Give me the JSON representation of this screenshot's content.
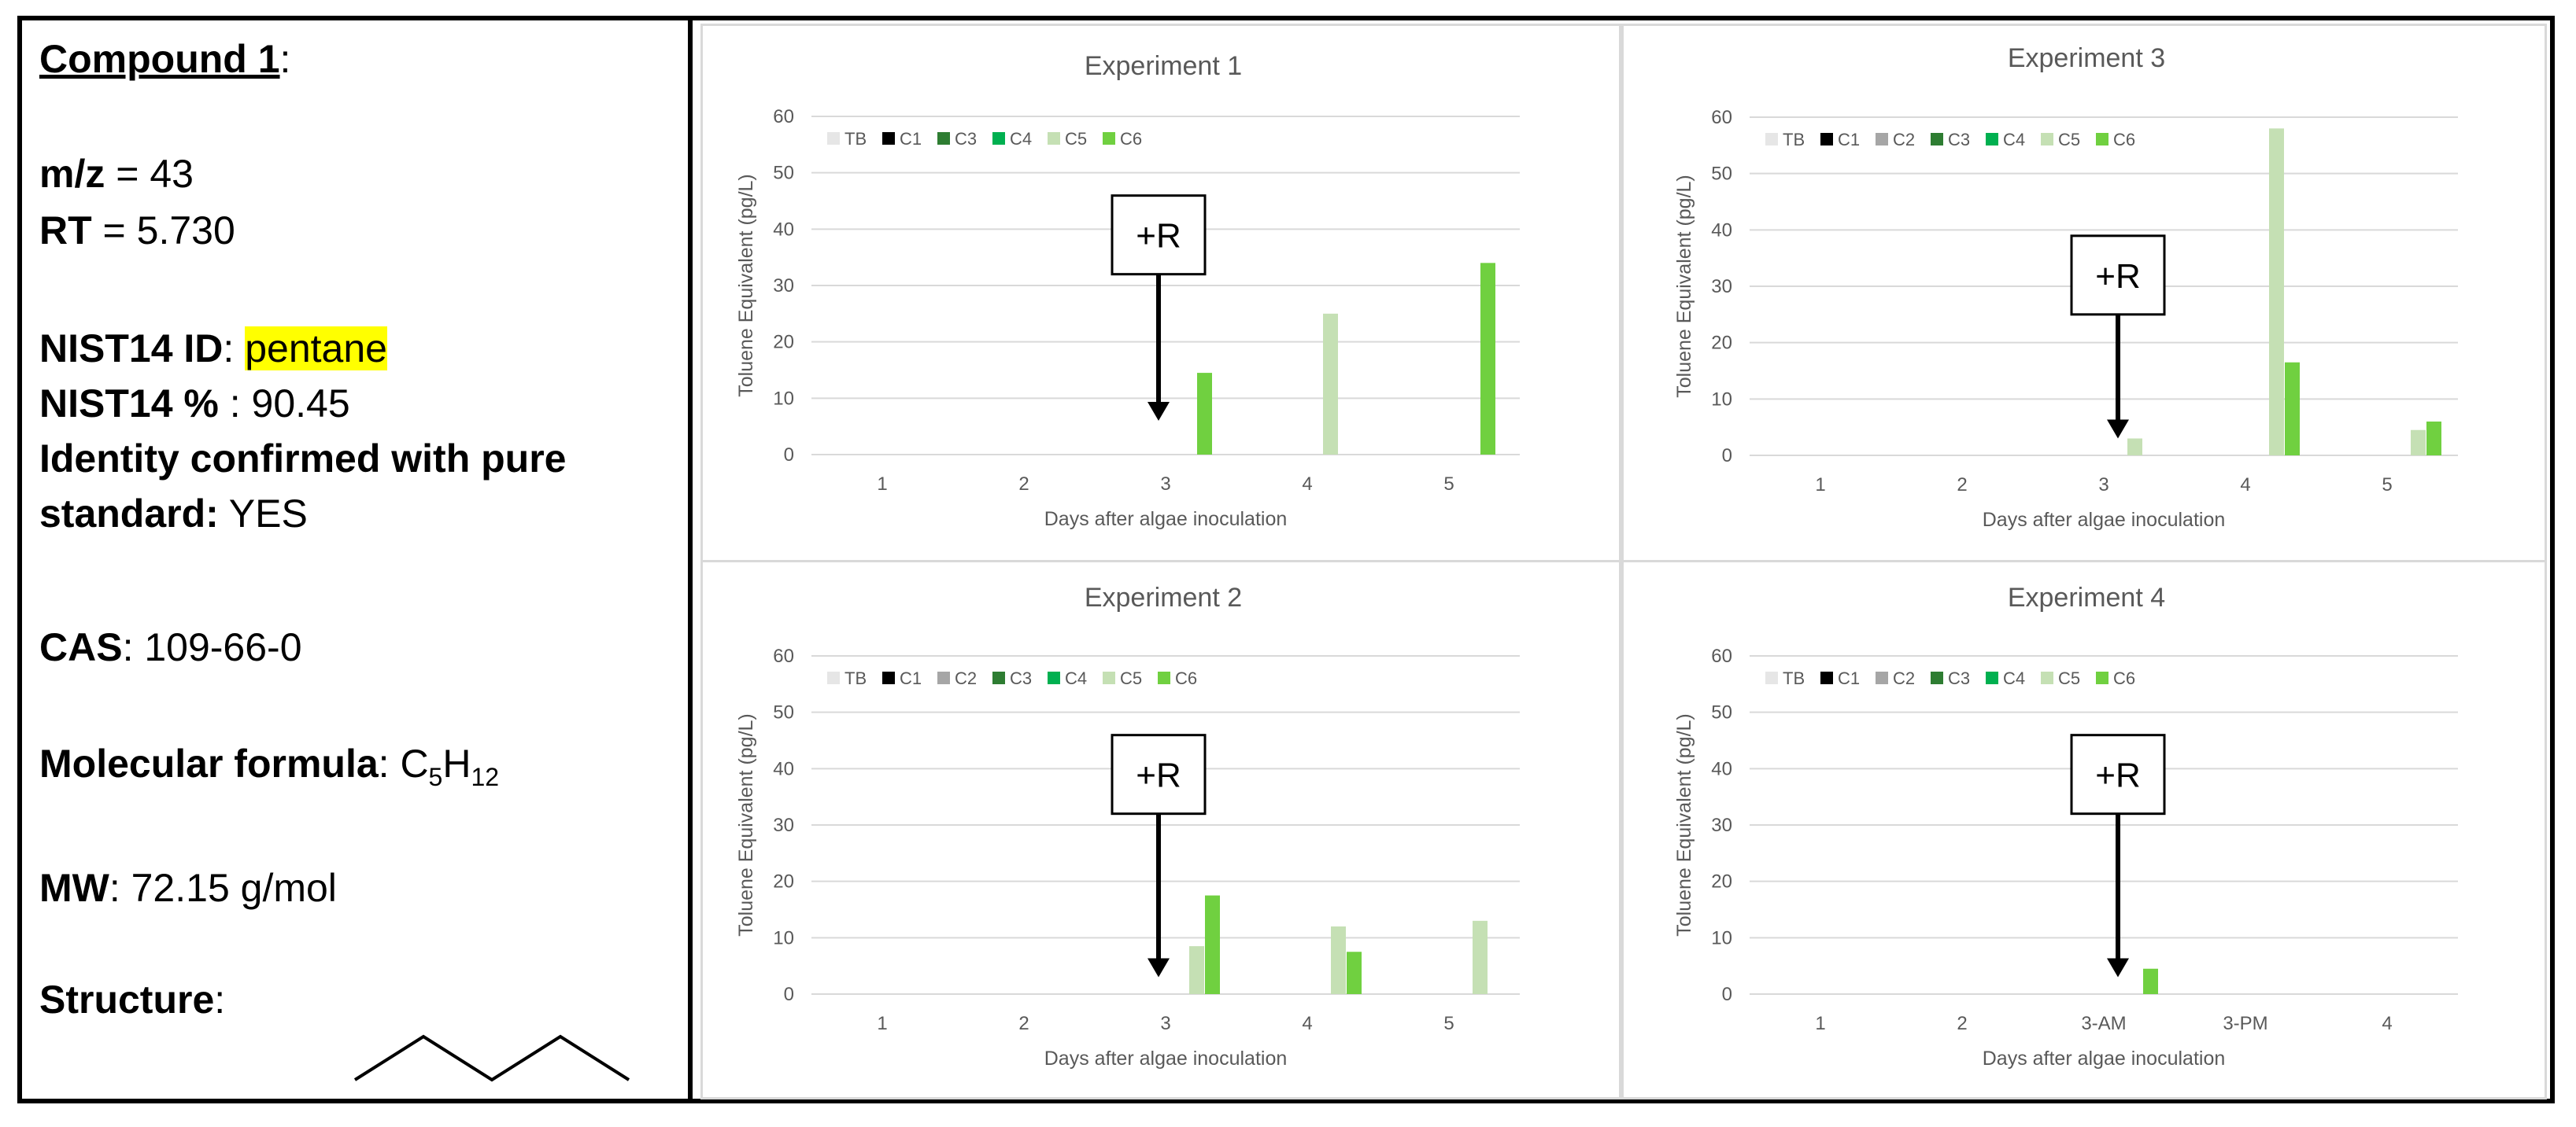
{
  "compound": {
    "title": "Compound 1",
    "title_suffix": ":",
    "mz_label": "m/z",
    "mz_value": " = 43",
    "rt_label": "RT",
    "rt_value": " = 5.730",
    "nist_id_label": "NIST14 ID",
    "nist_id_sep": ": ",
    "nist_id_value": "pentane",
    "nist_pct_label": "NIST14 %",
    "nist_pct_value": " : 90.45",
    "identity_line1": "Identity confirmed with pure",
    "identity_line2_label": "standard:",
    "identity_line2_value": " YES",
    "cas_label": "CAS",
    "cas_value": ": 109-66-0",
    "formula_label": "Molecular formula",
    "formula_sep": ": ",
    "formula_c": "C",
    "formula_c_sub": "5",
    "formula_h": "H",
    "formula_h_sub": "12",
    "mw_label": "MW",
    "mw_value": ": 72.15 g/mol",
    "structure_label": "Structure",
    "structure_sep": ":"
  },
  "colors": {
    "TB": "#e6e6e6",
    "C1": "#000000",
    "C2": "#a6a6a6",
    "C3": "#2e7d32",
    "C4": "#00b050",
    "C5": "#c5e0b4",
    "C6": "#70d040",
    "highlight": "#ffff00"
  },
  "chart_data": [
    {
      "type": "bar",
      "title": "Experiment 1",
      "xlabel": "Days after algae inoculation",
      "ylabel": "Toluene Equivalent (pg/L)",
      "ylim": [
        0,
        60
      ],
      "yticks": [
        0,
        10,
        20,
        30,
        40,
        50,
        60
      ],
      "categories": [
        "1",
        "2",
        "3",
        "4",
        "5"
      ],
      "legend": [
        "TB",
        "C1",
        "C3",
        "C4",
        "C5",
        "C6"
      ],
      "legend_position": "top-left",
      "grid": true,
      "series": [
        {
          "name": "TB",
          "values": [
            0,
            0,
            0,
            0,
            0
          ]
        },
        {
          "name": "C1",
          "values": [
            0,
            0,
            0,
            0,
            0
          ]
        },
        {
          "name": "C3",
          "values": [
            0,
            0,
            0,
            0,
            0
          ]
        },
        {
          "name": "C4",
          "values": [
            0,
            0,
            0,
            0,
            0
          ]
        },
        {
          "name": "C5",
          "values": [
            0,
            0,
            0,
            25,
            0
          ]
        },
        {
          "name": "C6",
          "values": [
            0,
            0,
            14.5,
            0,
            34
          ]
        }
      ],
      "annotation": {
        "text": "+R",
        "x_category": 2.45,
        "arrow_from": 32,
        "arrow_to": 6
      }
    },
    {
      "type": "bar",
      "title": "Experiment 3",
      "xlabel": "Days after algae inoculation",
      "ylabel": "Toluene Equivalent (pg/L)",
      "ylim": [
        0,
        60
      ],
      "yticks": [
        0,
        10,
        20,
        30,
        40,
        50,
        60
      ],
      "categories": [
        "1",
        "2",
        "3",
        "4",
        "5"
      ],
      "legend": [
        "TB",
        "C1",
        "C2",
        "C3",
        "C4",
        "C5",
        "C6"
      ],
      "legend_position": "top-left",
      "grid": true,
      "series": [
        {
          "name": "TB",
          "values": [
            0,
            0,
            0,
            0,
            0
          ]
        },
        {
          "name": "C1",
          "values": [
            0,
            0,
            0,
            0,
            0
          ]
        },
        {
          "name": "C2",
          "values": [
            0,
            0,
            0,
            0,
            0
          ]
        },
        {
          "name": "C3",
          "values": [
            0,
            0,
            0,
            0,
            0
          ]
        },
        {
          "name": "C4",
          "values": [
            0,
            0,
            0,
            0,
            0
          ]
        },
        {
          "name": "C5",
          "values": [
            0,
            0,
            3,
            58,
            4.5
          ]
        },
        {
          "name": "C6",
          "values": [
            0,
            0,
            0,
            16.5,
            6
          ]
        }
      ],
      "annotation": {
        "text": "+R",
        "x_category": 2.6,
        "arrow_from": 25,
        "arrow_to": 3
      }
    },
    {
      "type": "bar",
      "title": "Experiment 2",
      "xlabel": "Days after algae inoculation",
      "ylabel": "Toluene Equivalent (pg/L)",
      "ylim": [
        0,
        60
      ],
      "yticks": [
        0,
        10,
        20,
        30,
        40,
        50,
        60
      ],
      "categories": [
        "1",
        "2",
        "3",
        "4",
        "5"
      ],
      "legend": [
        "TB",
        "C1",
        "C2",
        "C3",
        "C4",
        "C5",
        "C6"
      ],
      "legend_position": "top-left",
      "grid": true,
      "series": [
        {
          "name": "TB",
          "values": [
            0,
            0,
            0,
            0,
            0
          ]
        },
        {
          "name": "C1",
          "values": [
            0,
            0,
            0,
            0,
            0
          ]
        },
        {
          "name": "C2",
          "values": [
            0,
            0,
            0,
            0,
            0
          ]
        },
        {
          "name": "C3",
          "values": [
            0,
            0,
            0,
            0,
            0
          ]
        },
        {
          "name": "C4",
          "values": [
            0,
            0,
            0,
            0,
            0
          ]
        },
        {
          "name": "C5",
          "values": [
            0,
            0,
            8.5,
            12,
            13
          ]
        },
        {
          "name": "C6",
          "values": [
            0,
            0,
            17.5,
            7.5,
            0
          ]
        }
      ],
      "annotation": {
        "text": "+R",
        "x_category": 2.45,
        "arrow_from": 32,
        "arrow_to": 3
      }
    },
    {
      "type": "bar",
      "title": "Experiment 4",
      "xlabel": "Days after algae inoculation",
      "ylabel": "Toluene Equivalent (pg/L)",
      "ylim": [
        0,
        60
      ],
      "yticks": [
        0,
        10,
        20,
        30,
        40,
        50,
        60
      ],
      "categories": [
        "1",
        "2",
        "3-AM",
        "3-PM",
        "4"
      ],
      "legend": [
        "TB",
        "C1",
        "C2",
        "C3",
        "C4",
        "C5",
        "C6"
      ],
      "legend_position": "top-left",
      "grid": true,
      "series": [
        {
          "name": "TB",
          "values": [
            0,
            0,
            0,
            0,
            0
          ]
        },
        {
          "name": "C1",
          "values": [
            0,
            0,
            0,
            0,
            0
          ]
        },
        {
          "name": "C2",
          "values": [
            0,
            0,
            0,
            0,
            0
          ]
        },
        {
          "name": "C3",
          "values": [
            0,
            0,
            0,
            0,
            0
          ]
        },
        {
          "name": "C4",
          "values": [
            0,
            0,
            0,
            0,
            0
          ]
        },
        {
          "name": "C5",
          "values": [
            0,
            0,
            0,
            0,
            0
          ]
        },
        {
          "name": "C6",
          "values": [
            0,
            0,
            4.5,
            0,
            0
          ]
        }
      ],
      "annotation": {
        "text": "+R",
        "x_category": 2.6,
        "arrow_from": 32,
        "arrow_to": 3
      }
    }
  ]
}
